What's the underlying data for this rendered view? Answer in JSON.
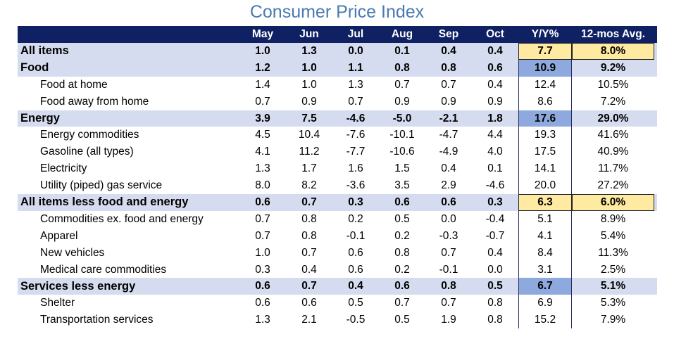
{
  "chart_data": {
    "type": "table",
    "title": "Consumer Price Index",
    "columns": [
      "May",
      "Jun",
      "Jul",
      "Aug",
      "Sep",
      "Oct",
      "Y/Y%",
      "12-mos Avg."
    ],
    "rows": [
      {
        "label": "All items",
        "level": 0,
        "values": [
          "1.0",
          "1.3",
          "0.0",
          "0.1",
          "0.4",
          "0.4"
        ],
        "yy": "7.7",
        "avg": "8.0%",
        "yy_hl": "yellow",
        "avg_hl": "yellow"
      },
      {
        "label": "Food",
        "level": 0,
        "values": [
          "1.2",
          "1.0",
          "1.1",
          "0.8",
          "0.8",
          "0.6"
        ],
        "yy": "10.9",
        "avg": "9.2%",
        "yy_hl": "blue",
        "avg_hl": ""
      },
      {
        "label": "Food at home",
        "level": 1,
        "values": [
          "1.4",
          "1.0",
          "1.3",
          "0.7",
          "0.7",
          "0.4"
        ],
        "yy": "12.4",
        "avg": "10.5%",
        "yy_hl": "",
        "avg_hl": ""
      },
      {
        "label": "Food away from home",
        "level": 1,
        "values": [
          "0.7",
          "0.9",
          "0.7",
          "0.9",
          "0.9",
          "0.9"
        ],
        "yy": "8.6",
        "avg": "7.2%",
        "yy_hl": "",
        "avg_hl": ""
      },
      {
        "label": "Energy",
        "level": 0,
        "values": [
          "3.9",
          "7.5",
          "-4.6",
          "-5.0",
          "-2.1",
          "1.8"
        ],
        "yy": "17.6",
        "avg": "29.0%",
        "yy_hl": "blue",
        "avg_hl": ""
      },
      {
        "label": "Energy commodities",
        "level": 1,
        "values": [
          "4.5",
          "10.4",
          "-7.6",
          "-10.1",
          "-4.7",
          "4.4"
        ],
        "yy": "19.3",
        "avg": "41.6%",
        "yy_hl": "",
        "avg_hl": ""
      },
      {
        "label": "Gasoline  (all types)",
        "level": 1,
        "values": [
          "4.1",
          "11.2",
          "-7.7",
          "-10.6",
          "-4.9",
          "4.0"
        ],
        "yy": "17.5",
        "avg": "40.9%",
        "yy_hl": "",
        "avg_hl": ""
      },
      {
        "label": "Electricity",
        "level": 1,
        "values": [
          "1.3",
          "1.7",
          "1.6",
          "1.5",
          "0.4",
          "0.1"
        ],
        "yy": "14.1",
        "avg": "11.7%",
        "yy_hl": "",
        "avg_hl": ""
      },
      {
        "label": "Utility (piped) gas service",
        "level": 1,
        "values": [
          "8.0",
          "8.2",
          "-3.6",
          "3.5",
          "2.9",
          "-4.6"
        ],
        "yy": "20.0",
        "avg": "27.2%",
        "yy_hl": "",
        "avg_hl": ""
      },
      {
        "label": "All items less food and energy",
        "level": 0,
        "values": [
          "0.6",
          "0.7",
          "0.3",
          "0.6",
          "0.6",
          "0.3"
        ],
        "yy": "6.3",
        "avg": "6.0%",
        "yy_hl": "yellow",
        "avg_hl": "yellow"
      },
      {
        "label": "Commodities ex. food and energy",
        "level": 1,
        "values": [
          "0.7",
          "0.8",
          "0.2",
          "0.5",
          "0.0",
          "-0.4"
        ],
        "yy": "5.1",
        "avg": "8.9%",
        "yy_hl": "",
        "avg_hl": ""
      },
      {
        "label": "Apparel",
        "level": 1,
        "values": [
          "0.7",
          "0.8",
          "-0.1",
          "0.2",
          "-0.3",
          "-0.7"
        ],
        "yy": "4.1",
        "avg": "5.4%",
        "yy_hl": "",
        "avg_hl": ""
      },
      {
        "label": "New vehicles",
        "level": 1,
        "values": [
          "1.0",
          "0.7",
          "0.6",
          "0.8",
          "0.7",
          "0.4"
        ],
        "yy": "8.4",
        "avg": "11.3%",
        "yy_hl": "",
        "avg_hl": ""
      },
      {
        "label": "Medical care commodities",
        "level": 1,
        "values": [
          "0.3",
          "0.4",
          "0.6",
          "0.2",
          "-0.1",
          "0.0"
        ],
        "yy": "3.1",
        "avg": "2.5%",
        "yy_hl": "",
        "avg_hl": ""
      },
      {
        "label": "Services less energy",
        "level": 0,
        "values": [
          "0.6",
          "0.7",
          "0.4",
          "0.6",
          "0.8",
          "0.5"
        ],
        "yy": "6.7",
        "avg": "5.1%",
        "yy_hl": "blue",
        "avg_hl": ""
      },
      {
        "label": "Shelter",
        "level": 1,
        "values": [
          "0.6",
          "0.6",
          "0.5",
          "0.7",
          "0.7",
          "0.8"
        ],
        "yy": "6.9",
        "avg": "5.3%",
        "yy_hl": "",
        "avg_hl": ""
      },
      {
        "label": "Transportation services",
        "level": 1,
        "values": [
          "1.3",
          "2.1",
          "-0.5",
          "0.5",
          "1.9",
          "0.8"
        ],
        "yy": "15.2",
        "avg": "7.9%",
        "yy_hl": "",
        "avg_hl": ""
      }
    ]
  },
  "colors": {
    "header_bg": "#0f2163",
    "band_bg": "#d6dcef",
    "highlight_yellow": "#ffeaa2",
    "highlight_blue": "#8ea9dd",
    "title": "#4a7ab2"
  }
}
